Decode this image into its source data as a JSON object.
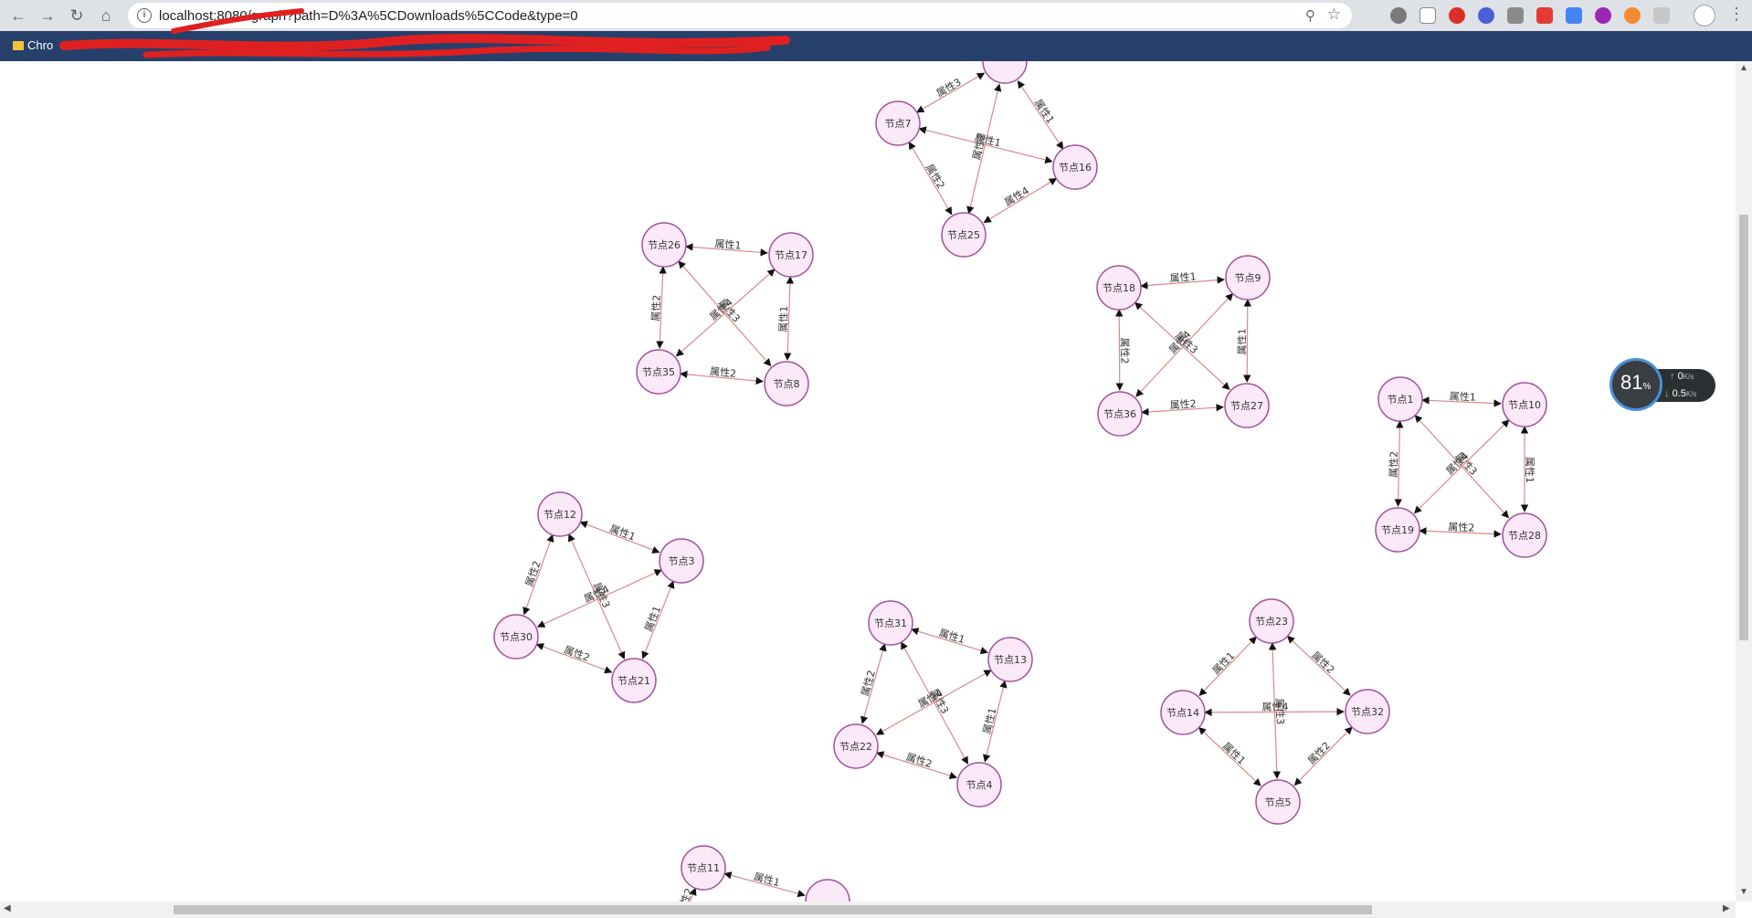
{
  "browser": {
    "url": "localhost:8080/graph?path=D%3A%5CDownloads%5CCode&type=0",
    "bookmark_first": "Chro",
    "icons": [
      "back-icon",
      "forward-icon",
      "reload-icon",
      "home-icon",
      "info-icon",
      "zoom-icon",
      "star-icon"
    ]
  },
  "colors": {
    "node_fill": "#fbe8f8",
    "node_stroke": "#a0529a",
    "edge": "#d98a8a",
    "label": "#333333",
    "toolbar": "#dee1e6",
    "bookmark_bar": "#25406a"
  },
  "monitor": {
    "percent": "81",
    "percent_unit": "%",
    "upload": "0",
    "download": "0.5",
    "unit": "K/s"
  },
  "graph": {
    "clusters": [
      {
        "nodes": [
          "节点7",
          "节点16",
          "节点25"
        ],
        "partial": true
      },
      {
        "nodes": [
          "节点26",
          "节点17",
          "节点35",
          "节点8"
        ]
      },
      {
        "nodes": [
          "节点18",
          "节点9",
          "节点36",
          "节点27"
        ]
      },
      {
        "nodes": [
          "节点1",
          "节点10",
          "节点19",
          "节点28"
        ]
      },
      {
        "nodes": [
          "节点12",
          "节点3",
          "节点30",
          "节点21"
        ]
      },
      {
        "nodes": [
          "节点31",
          "节点13",
          "节点22",
          "节点4"
        ]
      },
      {
        "nodes": [
          "节点23",
          "节点14",
          "节点32",
          "节点5"
        ]
      },
      {
        "nodes": [
          "节点11"
        ],
        "partial": true
      }
    ],
    "edge_labels": [
      "属性1",
      "属性2",
      "属性3",
      "属性4"
    ]
  }
}
